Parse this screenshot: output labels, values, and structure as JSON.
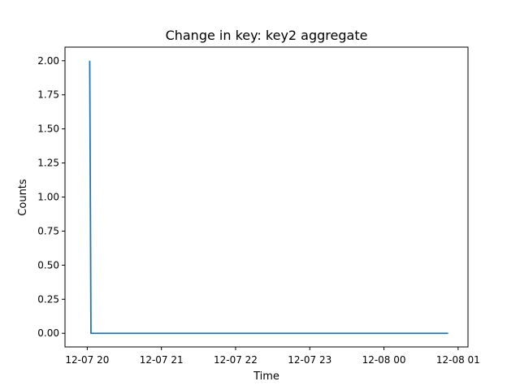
{
  "chart_data": {
    "type": "line",
    "title": "Change in key: key2 aggregate",
    "xlabel": "Time",
    "ylabel": "Counts",
    "x_type": "datetime",
    "x_tick_values": [
      "2023-12-07T20:00",
      "2023-12-07T21:00",
      "2023-12-07T22:00",
      "2023-12-07T23:00",
      "2023-12-08T00:00",
      "2023-12-08T01:00"
    ],
    "x_tick_labels": [
      "12-07 20",
      "12-07 21",
      "12-07 22",
      "12-07 23",
      "12-08 00",
      "12-08 01"
    ],
    "y_ticks": [
      0.0,
      0.25,
      0.5,
      0.75,
      1.0,
      1.25,
      1.5,
      1.75,
      2.0
    ],
    "y_tick_labels": [
      "0.00",
      "0.25",
      "0.50",
      "0.75",
      "1.00",
      "1.25",
      "1.50",
      "1.75",
      "2.00"
    ],
    "xlim": [
      "2023-12-07T19:42",
      "2023-12-08T01:08"
    ],
    "ylim": [
      -0.1,
      2.1
    ],
    "grid": false,
    "series": [
      {
        "color": "#1f77b4",
        "x": [
          "2023-12-07T20:02",
          "2023-12-07T20:03",
          "2023-12-08T00:52"
        ],
        "y": [
          2,
          0,
          0
        ]
      }
    ]
  }
}
